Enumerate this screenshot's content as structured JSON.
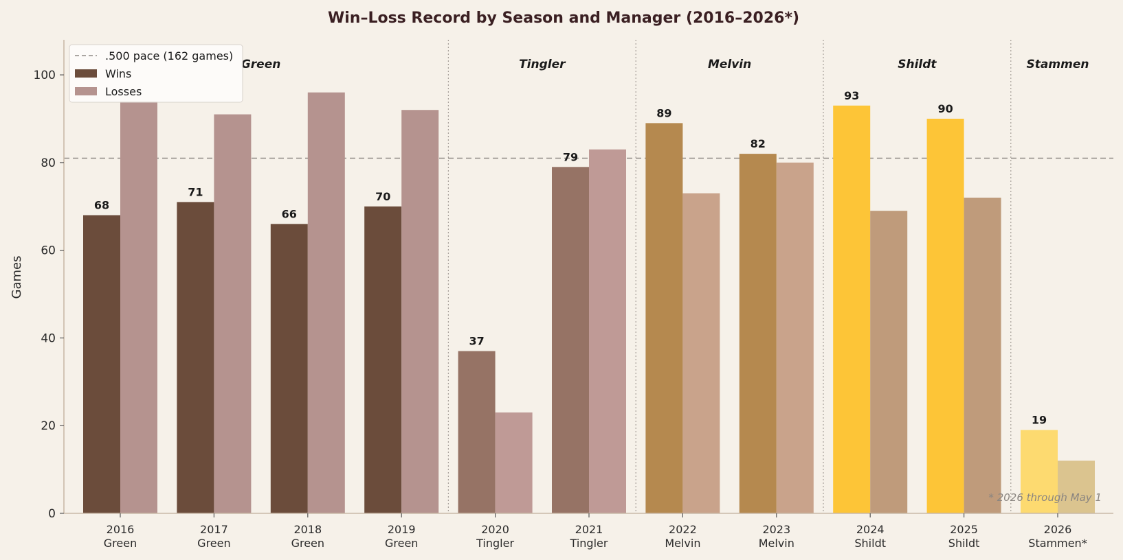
{
  "chart_data": {
    "type": "bar",
    "title": "Win–Loss Record by Season and Manager (2016–2026*)",
    "ylabel": "Games",
    "xlabel": "",
    "ylim": [
      0,
      108
    ],
    "yticks": [
      "0",
      "20",
      "40",
      "60",
      "80",
      "100"
    ],
    "grid": false,
    "legend_placement": "top-left",
    "categories": [
      "2016",
      "2017",
      "2018",
      "2019",
      "2020",
      "2021",
      "2022",
      "2023",
      "2024",
      "2025",
      "2026"
    ],
    "managers": [
      "Green",
      "Green",
      "Green",
      "Green",
      "Tingler",
      "Tingler",
      "Melvin",
      "Melvin",
      "Shildt",
      "Shildt",
      "Stammen*"
    ],
    "manager_groups": [
      {
        "name": "Green",
        "start": 0,
        "end": 3
      },
      {
        "name": "Tingler",
        "start": 4,
        "end": 5
      },
      {
        "name": "Melvin",
        "start": 6,
        "end": 7
      },
      {
        "name": "Shildt",
        "start": 8,
        "end": 9
      },
      {
        "name": "Stammen",
        "start": 10,
        "end": 10
      }
    ],
    "series": [
      {
        "name": "Wins",
        "values": [
          68,
          71,
          66,
          70,
          37,
          79,
          89,
          82,
          93,
          90,
          19
        ]
      },
      {
        "name": "Losses",
        "values": [
          94,
          91,
          96,
          92,
          23,
          83,
          73,
          80,
          69,
          72,
          12
        ]
      }
    ],
    "win_labels": [
      "68",
      "71",
      "66",
      "70",
      "37",
      "79",
      "89",
      "82",
      "93",
      "90",
      "19"
    ],
    "win_colors": [
      "#6b4c3b",
      "#6b4c3b",
      "#6b4c3b",
      "#6b4c3b",
      "#967365",
      "#967365",
      "#b5894f",
      "#b5894f",
      "#fdc537",
      "#fdc537",
      "#fdda70"
    ],
    "loss_colors": [
      "#b5938f",
      "#b5938f",
      "#b5938f",
      "#b5938f",
      "#bf9a96",
      "#bf9a96",
      "#c9a38b",
      "#c9a38b",
      "#bf9b7b",
      "#bf9b7b",
      "#dbc48f"
    ],
    "reference_line": {
      "label": ".500 pace (162 games)",
      "value": 81
    },
    "legend": [
      {
        "label": ".500 pace (162 games)",
        "kind": "dashed-line",
        "color": "#8f8a85"
      },
      {
        "label": "Wins",
        "kind": "patch",
        "color": "#6b4c3b"
      },
      {
        "label": "Losses",
        "kind": "patch",
        "color": "#b5938f"
      }
    ],
    "note": "* 2026 through May 1"
  }
}
